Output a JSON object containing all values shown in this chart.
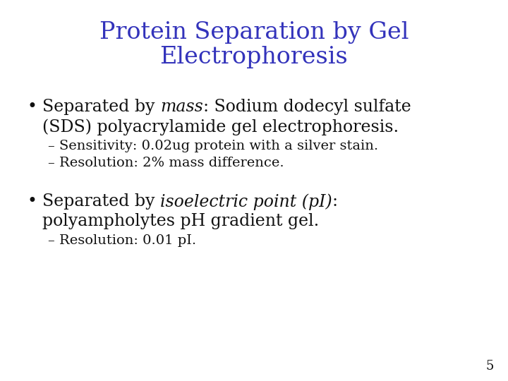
{
  "title_line1": "Protein Separation by Gel",
  "title_line2": "Electrophoresis",
  "title_color": "#3333bb",
  "title_fontsize": 24,
  "background_color": "#ffffff",
  "bullet_color": "#111111",
  "bullet_fontsize": 17,
  "sub_fontsize": 14,
  "page_number": "5",
  "sub1_1": "– Sensitivity: 0.02ug protein with a silver stain.",
  "sub1_2": "– Resolution: 2% mass difference.",
  "bullet1_line2": "(SDS) polyacrylamide gel electrophoresis.",
  "bullet2_line2": "polyampholytes pH gradient gel.",
  "sub2_1": "– Resolution: 0.01 pI."
}
